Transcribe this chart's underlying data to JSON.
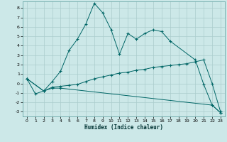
{
  "title": "",
  "xlabel": "Humidex (Indice chaleur)",
  "bg_color": "#cce8e8",
  "grid_color": "#aacccc",
  "line_color": "#006666",
  "xlim": [
    -0.5,
    23.5
  ],
  "ylim": [
    -3.5,
    8.7
  ],
  "xticks": [
    0,
    1,
    2,
    3,
    4,
    5,
    6,
    7,
    8,
    9,
    10,
    11,
    12,
    13,
    14,
    15,
    16,
    17,
    18,
    19,
    20,
    21,
    22,
    23
  ],
  "yticks": [
    -3,
    -2,
    -1,
    0,
    1,
    2,
    3,
    4,
    5,
    6,
    7,
    8
  ],
  "line1_x": [
    0,
    1,
    2,
    3,
    4,
    5,
    6,
    7,
    8,
    9,
    10,
    11,
    12,
    13,
    14,
    15,
    16,
    17,
    20,
    21,
    22,
    23
  ],
  "line1_y": [
    0.5,
    -1.1,
    -0.8,
    0.2,
    1.3,
    3.5,
    4.7,
    6.3,
    8.5,
    7.5,
    5.7,
    3.1,
    5.3,
    4.7,
    5.3,
    5.7,
    5.5,
    4.5,
    2.5,
    -0.1,
    -2.3,
    -3.1
  ],
  "line2_x": [
    0,
    2,
    3,
    4,
    5,
    6,
    7,
    8,
    9,
    10,
    11,
    12,
    13,
    14,
    15,
    16,
    17,
    18,
    19,
    20,
    21,
    22,
    23
  ],
  "line2_y": [
    0.5,
    -0.8,
    -0.4,
    -0.3,
    -0.2,
    -0.1,
    0.2,
    0.5,
    0.7,
    0.9,
    1.1,
    1.2,
    1.4,
    1.5,
    1.7,
    1.8,
    1.9,
    2.0,
    2.1,
    2.3,
    2.5,
    0.0,
    -3.0
  ],
  "line3_x": [
    0,
    2,
    3,
    4,
    22,
    23
  ],
  "line3_y": [
    0.5,
    -0.8,
    -0.5,
    -0.5,
    -2.3,
    -3.1
  ]
}
